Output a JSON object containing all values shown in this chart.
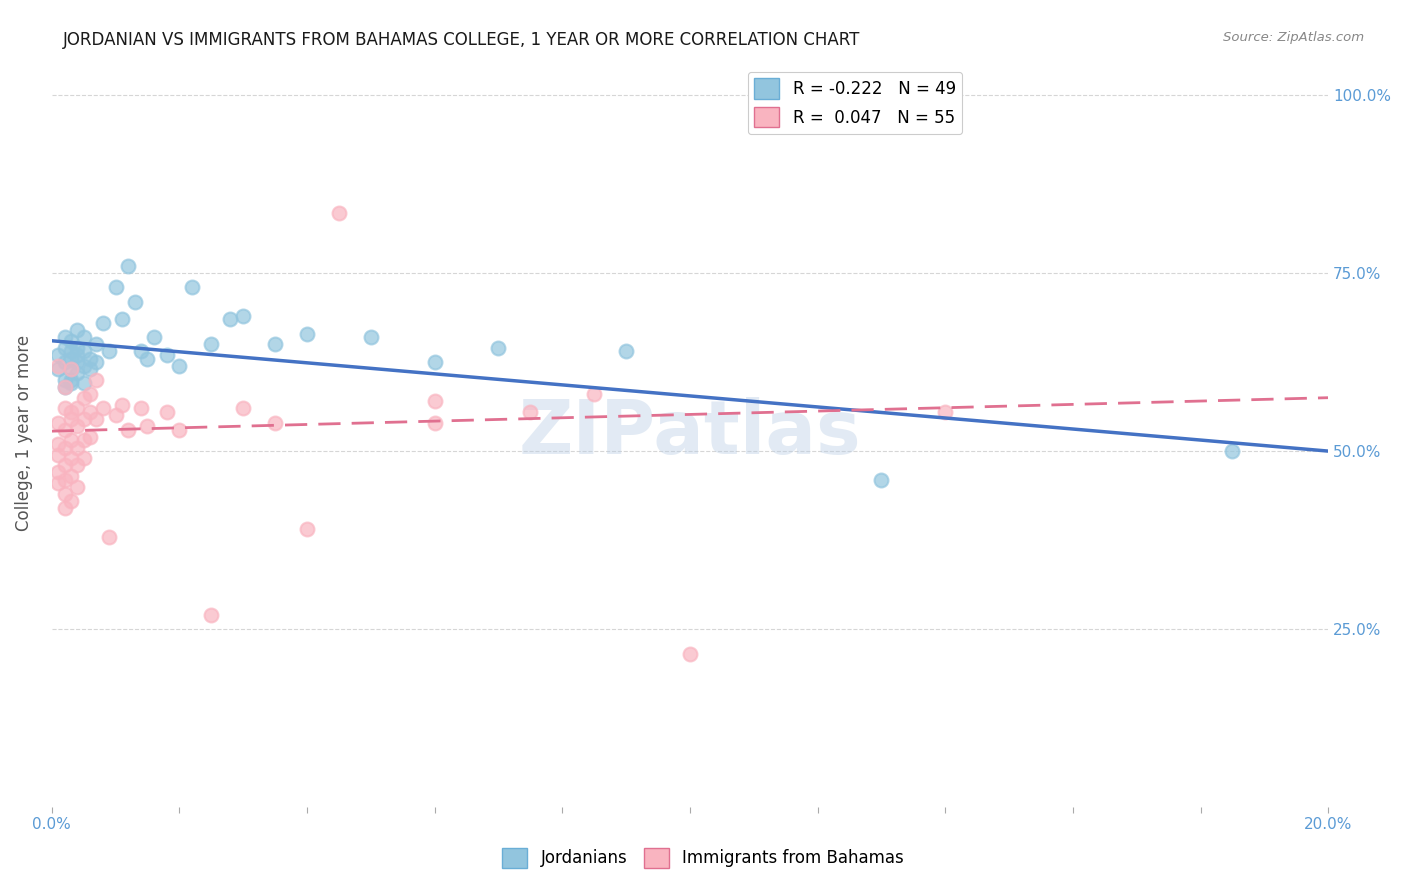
{
  "title": "JORDANIAN VS IMMIGRANTS FROM BAHAMAS COLLEGE, 1 YEAR OR MORE CORRELATION CHART",
  "source_text": "Source: ZipAtlas.com",
  "ylabel": "College, 1 year or more",
  "right_yticks": [
    "25.0%",
    "50.0%",
    "75.0%",
    "100.0%"
  ],
  "right_ytick_vals": [
    0.25,
    0.5,
    0.75,
    1.0
  ],
  "xmin": 0.0,
  "xmax": 0.2,
  "ymin": 0.0,
  "ymax": 1.05,
  "color_blue": "#92C5DE",
  "color_pink": "#F9B4C0",
  "line_blue": "#4472C4",
  "line_pink": "#E07090",
  "watermark": "ZIPatlas",
  "jordanians": [
    [
      0.001,
      0.635
    ],
    [
      0.001,
      0.615
    ],
    [
      0.002,
      0.645
    ],
    [
      0.002,
      0.6
    ],
    [
      0.002,
      0.625
    ],
    [
      0.002,
      0.59
    ],
    [
      0.002,
      0.66
    ],
    [
      0.003,
      0.64
    ],
    [
      0.003,
      0.615
    ],
    [
      0.003,
      0.595
    ],
    [
      0.003,
      0.63
    ],
    [
      0.003,
      0.655
    ],
    [
      0.003,
      0.6
    ],
    [
      0.004,
      0.645
    ],
    [
      0.004,
      0.625
    ],
    [
      0.004,
      0.67
    ],
    [
      0.004,
      0.61
    ],
    [
      0.004,
      0.635
    ],
    [
      0.005,
      0.64
    ],
    [
      0.005,
      0.62
    ],
    [
      0.005,
      0.595
    ],
    [
      0.005,
      0.66
    ],
    [
      0.006,
      0.63
    ],
    [
      0.006,
      0.615
    ],
    [
      0.007,
      0.65
    ],
    [
      0.007,
      0.625
    ],
    [
      0.008,
      0.68
    ],
    [
      0.009,
      0.64
    ],
    [
      0.01,
      0.73
    ],
    [
      0.011,
      0.685
    ],
    [
      0.012,
      0.76
    ],
    [
      0.013,
      0.71
    ],
    [
      0.014,
      0.64
    ],
    [
      0.015,
      0.63
    ],
    [
      0.016,
      0.66
    ],
    [
      0.018,
      0.635
    ],
    [
      0.02,
      0.62
    ],
    [
      0.022,
      0.73
    ],
    [
      0.025,
      0.65
    ],
    [
      0.028,
      0.685
    ],
    [
      0.03,
      0.69
    ],
    [
      0.035,
      0.65
    ],
    [
      0.04,
      0.665
    ],
    [
      0.05,
      0.66
    ],
    [
      0.06,
      0.625
    ],
    [
      0.07,
      0.645
    ],
    [
      0.09,
      0.64
    ],
    [
      0.13,
      0.46
    ],
    [
      0.185,
      0.5
    ]
  ],
  "bahamas": [
    [
      0.001,
      0.54
    ],
    [
      0.001,
      0.51
    ],
    [
      0.001,
      0.495
    ],
    [
      0.001,
      0.47
    ],
    [
      0.001,
      0.455
    ],
    [
      0.001,
      0.62
    ],
    [
      0.002,
      0.53
    ],
    [
      0.002,
      0.505
    ],
    [
      0.002,
      0.48
    ],
    [
      0.002,
      0.46
    ],
    [
      0.002,
      0.56
    ],
    [
      0.002,
      0.44
    ],
    [
      0.002,
      0.42
    ],
    [
      0.002,
      0.59
    ],
    [
      0.003,
      0.545
    ],
    [
      0.003,
      0.515
    ],
    [
      0.003,
      0.49
    ],
    [
      0.003,
      0.465
    ],
    [
      0.003,
      0.555
    ],
    [
      0.003,
      0.43
    ],
    [
      0.003,
      0.615
    ],
    [
      0.004,
      0.535
    ],
    [
      0.004,
      0.505
    ],
    [
      0.004,
      0.48
    ],
    [
      0.004,
      0.45
    ],
    [
      0.004,
      0.56
    ],
    [
      0.005,
      0.545
    ],
    [
      0.005,
      0.515
    ],
    [
      0.005,
      0.49
    ],
    [
      0.005,
      0.575
    ],
    [
      0.006,
      0.555
    ],
    [
      0.006,
      0.52
    ],
    [
      0.006,
      0.58
    ],
    [
      0.007,
      0.545
    ],
    [
      0.007,
      0.6
    ],
    [
      0.008,
      0.56
    ],
    [
      0.009,
      0.38
    ],
    [
      0.01,
      0.55
    ],
    [
      0.011,
      0.565
    ],
    [
      0.012,
      0.53
    ],
    [
      0.014,
      0.56
    ],
    [
      0.015,
      0.535
    ],
    [
      0.018,
      0.555
    ],
    [
      0.02,
      0.53
    ],
    [
      0.025,
      0.27
    ],
    [
      0.03,
      0.56
    ],
    [
      0.035,
      0.54
    ],
    [
      0.04,
      0.39
    ],
    [
      0.045,
      0.835
    ],
    [
      0.06,
      0.57
    ],
    [
      0.06,
      0.54
    ],
    [
      0.075,
      0.555
    ],
    [
      0.085,
      0.58
    ],
    [
      0.1,
      0.215
    ],
    [
      0.14,
      0.555
    ]
  ]
}
